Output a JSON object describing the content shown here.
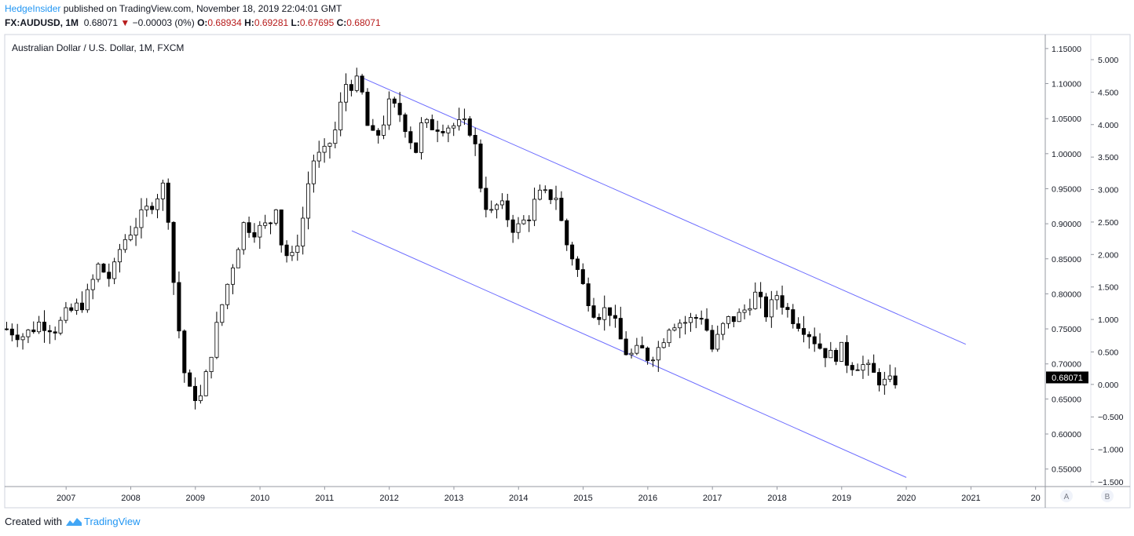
{
  "header": {
    "author": "HedgeInsider",
    "published": " published on TradingView.com, November 18, 2019 22:04:01 GMT",
    "symbol": "FX:AUDUSD, 1M",
    "last": "0.68071",
    "arrow": "▼",
    "change": "−0.00003 (0%)",
    "o_label": "O:",
    "o_value": "0.68934",
    "h_label": "H:",
    "h_value": "0.69281",
    "l_label": "L:",
    "l_value": "0.67695",
    "c_label": "C:",
    "c_value": "0.68071"
  },
  "footer": {
    "created_with": "Created with",
    "brand": "TradingView"
  },
  "scale_buttons": {
    "a": "A",
    "b": "B"
  },
  "colors": {
    "up": "#ffffff",
    "down": "#000000",
    "wick": "#000000",
    "channel": "#6b6bff",
    "axis": "#787b86",
    "last_bg": "#000000"
  },
  "chart_data": {
    "type": "candlestick",
    "title": "Australian Dollar / U.S. Dollar, 1M, FXCM",
    "last_price_label": "0.68071",
    "ylim": [
      0.525,
      1.17
    ],
    "xlim": [
      2006.05,
      2022.15
    ],
    "x_ticks": [
      "2007",
      "2008",
      "2009",
      "2010",
      "2011",
      "2012",
      "2013",
      "2014",
      "2015",
      "2016",
      "2017",
      "2018",
      "2019",
      "2020",
      "2021",
      "20"
    ],
    "y_ticks": [
      "1.15000",
      "1.10000",
      "1.05000",
      "1.00000",
      "0.95000",
      "0.90000",
      "0.85000",
      "0.80000",
      "0.75000",
      "0.70000",
      "0.65000",
      "0.60000",
      "0.55000"
    ],
    "y_ticks_values": [
      1.15,
      1.1,
      1.05,
      1.0,
      0.95,
      0.9,
      0.85,
      0.8,
      0.75,
      0.7,
      0.65,
      0.6,
      0.55
    ],
    "secondary_ticks": [
      "5.000",
      "4.500",
      "4.000",
      "3.500",
      "3.000",
      "2.500",
      "2.000",
      "1.500",
      "1.000",
      "0.500",
      "0.000",
      "−0.500",
      "−1.000",
      "−1.500"
    ],
    "channel_lines": [
      {
        "name": "upper",
        "x1": 2011.54,
        "y1": 1.11,
        "x2": 2020.92,
        "y2": 0.728
      },
      {
        "name": "lower",
        "x1": 2011.42,
        "y1": 0.89,
        "x2": 2020.0,
        "y2": 0.538
      }
    ],
    "keypoints": [
      [
        2006.08,
        0.75
      ],
      [
        2006.35,
        0.74
      ],
      [
        2006.6,
        0.76
      ],
      [
        2006.85,
        0.75
      ],
      [
        2007.0,
        0.77
      ],
      [
        2007.3,
        0.79
      ],
      [
        2007.5,
        0.84
      ],
      [
        2007.7,
        0.82
      ],
      [
        2007.85,
        0.87
      ],
      [
        2008.0,
        0.89
      ],
      [
        2008.25,
        0.92
      ],
      [
        2008.55,
        0.96
      ],
      [
        2008.62,
        0.85
      ],
      [
        2008.7,
        0.79
      ],
      [
        2008.8,
        0.7
      ],
      [
        2008.9,
        0.66
      ],
      [
        2009.1,
        0.65
      ],
      [
        2009.2,
        0.7
      ],
      [
        2009.4,
        0.78
      ],
      [
        2009.6,
        0.85
      ],
      [
        2009.75,
        0.9
      ],
      [
        2009.95,
        0.89
      ],
      [
        2010.15,
        0.9
      ],
      [
        2010.25,
        0.93
      ],
      [
        2010.35,
        0.86
      ],
      [
        2010.5,
        0.85
      ],
      [
        2010.65,
        0.9
      ],
      [
        2010.8,
        0.99
      ],
      [
        2011.0,
        1.0
      ],
      [
        2011.2,
        1.04
      ],
      [
        2011.3,
        1.1
      ],
      [
        2011.55,
        1.1
      ],
      [
        2011.7,
        1.02
      ],
      [
        2011.85,
        1.03
      ],
      [
        2012.0,
        1.07
      ],
      [
        2012.15,
        1.06
      ],
      [
        2012.3,
        1.03
      ],
      [
        2012.4,
        1.0
      ],
      [
        2012.5,
        1.04
      ],
      [
        2012.7,
        1.04
      ],
      [
        2012.85,
        1.04
      ],
      [
        2013.0,
        1.04
      ],
      [
        2013.2,
        1.04
      ],
      [
        2013.3,
        1.03
      ],
      [
        2013.4,
        0.96
      ],
      [
        2013.55,
        0.91
      ],
      [
        2013.7,
        0.93
      ],
      [
        2013.95,
        0.89
      ],
      [
        2014.15,
        0.91
      ],
      [
        2014.3,
        0.94
      ],
      [
        2014.6,
        0.94
      ],
      [
        2014.7,
        0.88
      ],
      [
        2014.85,
        0.85
      ],
      [
        2015.0,
        0.81
      ],
      [
        2015.2,
        0.77
      ],
      [
        2015.4,
        0.78
      ],
      [
        2015.55,
        0.74
      ],
      [
        2015.7,
        0.71
      ],
      [
        2015.9,
        0.72
      ],
      [
        2016.0,
        0.71
      ],
      [
        2016.15,
        0.72
      ],
      [
        2016.35,
        0.76
      ],
      [
        2016.6,
        0.76
      ],
      [
        2016.85,
        0.77
      ],
      [
        2017.0,
        0.72
      ],
      [
        2017.2,
        0.76
      ],
      [
        2017.45,
        0.77
      ],
      [
        2017.65,
        0.8
      ],
      [
        2017.85,
        0.77
      ],
      [
        2018.0,
        0.8
      ],
      [
        2018.2,
        0.77
      ],
      [
        2018.45,
        0.75
      ],
      [
        2018.7,
        0.72
      ],
      [
        2018.85,
        0.71
      ],
      [
        2019.0,
        0.72
      ],
      [
        2019.1,
        0.7
      ],
      [
        2019.3,
        0.7
      ],
      [
        2019.55,
        0.68
      ],
      [
        2019.7,
        0.67
      ],
      [
        2019.88,
        0.68
      ]
    ]
  }
}
